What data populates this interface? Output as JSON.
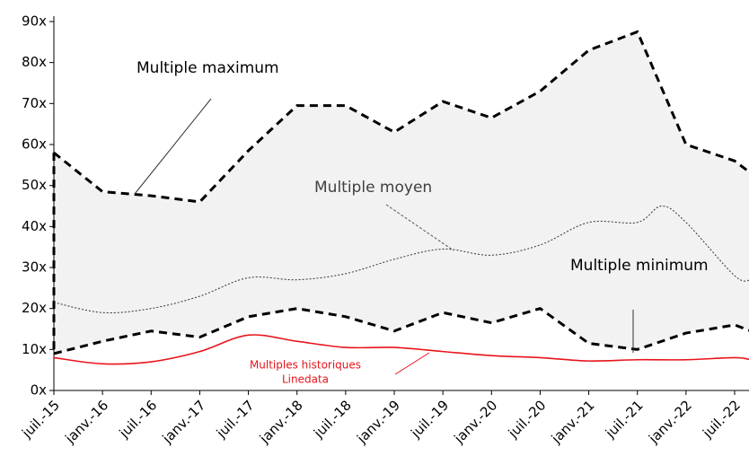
{
  "chart_data": {
    "type": "line",
    "x_ticks_note_free": null,
    "xlim": [
      0,
      86
    ],
    "xticks": [
      {
        "value": 0,
        "label": "juil.-15"
      },
      {
        "value": 6,
        "label": "janv.-16"
      },
      {
        "value": 12,
        "label": "juil.-16"
      },
      {
        "value": 18,
        "label": "janv.-17"
      },
      {
        "value": 24,
        "label": "juil.-17"
      },
      {
        "value": 30,
        "label": "janv.-18"
      },
      {
        "value": 36,
        "label": "juil.-18"
      },
      {
        "value": 42,
        "label": "janv.-19"
      },
      {
        "value": 48,
        "label": "juil.-19"
      },
      {
        "value": 54,
        "label": "janv.-20"
      },
      {
        "value": 60,
        "label": "juil.-20"
      },
      {
        "value": 66,
        "label": "janv.-21"
      },
      {
        "value": 72,
        "label": "juil.-21"
      },
      {
        "value": 78,
        "label": "janv.-22"
      },
      {
        "value": 84,
        "label": "juil.-22"
      }
    ],
    "ylim": [
      0,
      90
    ],
    "yticks": [
      {
        "value": 0,
        "label": "0x"
      },
      {
        "value": 10,
        "label": "10x"
      },
      {
        "value": 20,
        "label": "20x"
      },
      {
        "value": 30,
        "label": "30x"
      },
      {
        "value": 40,
        "label": "40x"
      },
      {
        "value": 50,
        "label": "50x"
      },
      {
        "value": 60,
        "label": "60x"
      },
      {
        "value": 70,
        "label": "70x"
      },
      {
        "value": 80,
        "label": "80x"
      },
      {
        "value": 90,
        "label": "90x"
      }
    ],
    "band_color": "#f2f2f2",
    "series": [
      {
        "color": "#000000",
        "dash": "dashed",
        "smooth": false,
        "x": [
          0,
          6,
          12,
          18,
          24,
          30,
          36,
          42,
          48,
          54,
          60,
          66,
          72,
          78,
          84,
          86
        ],
        "values": [
          58,
          48.5,
          47.5,
          46,
          58.5,
          69.5,
          69.5,
          63,
          70.5,
          66.5,
          73,
          83,
          87.5,
          60,
          56,
          53
        ]
      },
      {
        "color": "#000000",
        "dash": "dashed",
        "smooth": false,
        "x": [
          0,
          6,
          12,
          18,
          24,
          30,
          36,
          42,
          48,
          54,
          60,
          66,
          72,
          78,
          84,
          86
        ],
        "values": [
          9,
          12,
          14.5,
          13,
          18,
          20,
          18,
          14.5,
          19,
          16.5,
          20,
          11.5,
          10,
          14,
          16,
          14.5
        ]
      },
      {
        "color": "#333333",
        "dash": "dotted",
        "smooth": true,
        "x": [
          0,
          6,
          12,
          18,
          24,
          30,
          36,
          42,
          48,
          54,
          60,
          66,
          72,
          75,
          78,
          84,
          86
        ],
        "values": [
          21.5,
          19,
          20,
          23,
          27.5,
          27,
          28.5,
          32,
          34.5,
          33,
          35.5,
          41,
          41,
          45,
          41,
          28,
          27
        ]
      },
      {
        "color": "#e8141c",
        "dash": "solid",
        "smooth": true,
        "x": [
          0,
          6,
          12,
          18,
          24,
          30,
          36,
          42,
          48,
          54,
          60,
          66,
          72,
          78,
          84,
          86
        ],
        "values": [
          8,
          6.5,
          7,
          9.5,
          13.5,
          12,
          10.5,
          10.5,
          9.5,
          8.5,
          8,
          7.2,
          7.5,
          7.5,
          8,
          7.5
        ]
      }
    ],
    "annotations": [
      {
        "text": "Multiple maximum",
        "color": "#000000"
      },
      {
        "text": "Multiple moyen",
        "color": "#404040"
      },
      {
        "text": "Multiple minimum",
        "color": "#000000"
      },
      {
        "text": "Multiples historiques",
        "color": "#e8141c"
      },
      {
        "text": "Linedata",
        "color": "#e8141c"
      }
    ]
  }
}
